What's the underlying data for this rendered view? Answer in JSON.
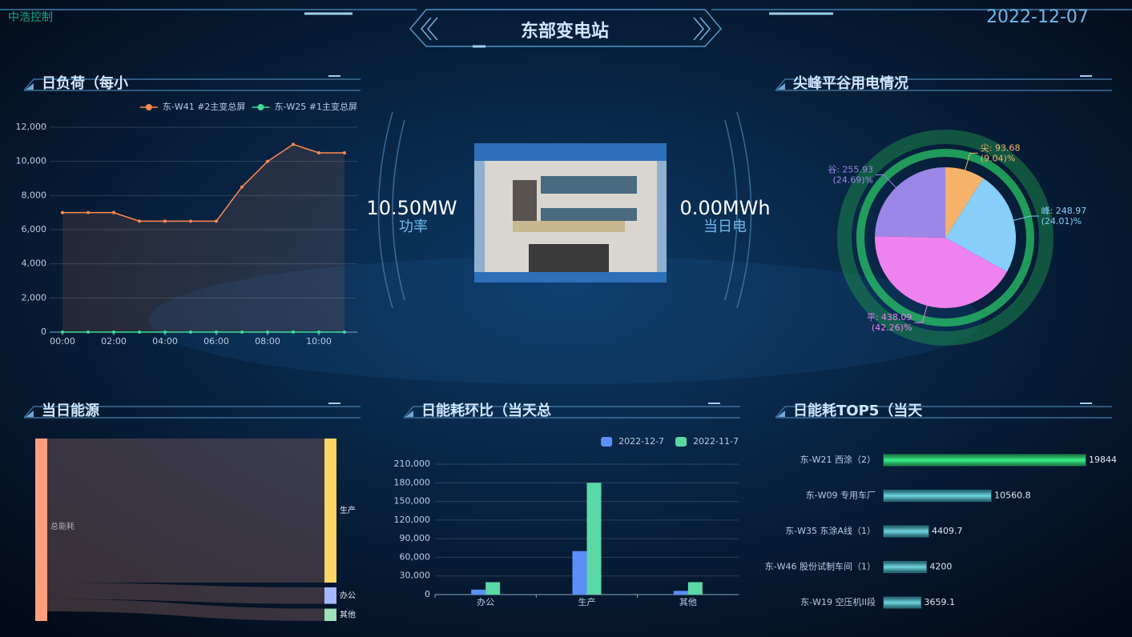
{
  "header": {
    "logo": "中浩控制",
    "title": "东部变电站",
    "date": "2022-12-07"
  },
  "center": {
    "power": "10.50MW",
    "power_label": "功率",
    "energy": "0.00MWh",
    "energy_label": "当日电"
  },
  "chart_data": [
    {
      "type": "line",
      "title": "日负荷（每小",
      "categories": [
        "00:00",
        null,
        "02:00",
        null,
        "04:00",
        null,
        "06:00",
        null,
        "08:00",
        null,
        "10:00",
        null
      ],
      "series": [
        {
          "name": "东-W41 #2主变总屏",
          "color": "#ff8a50",
          "values": [
            7000,
            7000,
            7000,
            6500,
            6500,
            6500,
            6500,
            8500,
            10000,
            11000,
            10500,
            10500
          ]
        },
        {
          "name": "东-W25 #1主变总屏",
          "color": "#3ddc97",
          "values": [
            0,
            0,
            0,
            0,
            0,
            0,
            0,
            0,
            0,
            0,
            0,
            0
          ]
        }
      ],
      "ylim": [
        0,
        12000
      ],
      "yticks": [
        0,
        {
          "value": 2000,
          "label": "2,000"
        },
        {
          "value": 4000,
          "label": "4,000"
        },
        {
          "value": 6000,
          "label": "6,000"
        },
        {
          "value": 8000,
          "label": "8,000"
        },
        {
          "value": 10000,
          "label": "10,000"
        },
        {
          "value": 12000,
          "label": "12,000"
        }
      ],
      "grid": true
    },
    {
      "type": "pie",
      "title": "尖峰平谷用电情况",
      "categories": [
        "尖",
        "峰",
        "平",
        "谷"
      ],
      "values": [
        93.68,
        248.97,
        438.09,
        255.93
      ],
      "value_labels": [
        "尖: 93.68",
        "峰: 248.97",
        "平: 438.09",
        "谷: 255.93"
      ],
      "percent_labels": [
        "(9.04)%",
        "(24.01)%",
        "(42.26)%",
        "(24.69)%"
      ],
      "colors": [
        "#f6b26b",
        "#87cefa",
        "#ee82ee",
        "#9b87e8"
      ]
    },
    {
      "type": "sankey",
      "title": "当日能源",
      "nodes": [
        {
          "name": "总能耗",
          "color": "#ff9f7f"
        },
        {
          "name": "生产",
          "color": "#ffd666"
        },
        {
          "name": "办公",
          "color": "#a5b8ff"
        },
        {
          "name": "其他",
          "color": "#9be3b8"
        }
      ],
      "links": [
        {
          "source": "总能耗",
          "target": "生产",
          "value": 70000
        },
        {
          "source": "总能耗",
          "target": "办公",
          "value": 8000
        },
        {
          "source": "总能耗",
          "target": "其他",
          "value": 6000
        }
      ]
    },
    {
      "type": "bar",
      "title": "日能耗环比（当天总",
      "categories": [
        "办公",
        "生产",
        "其他"
      ],
      "series": [
        {
          "name": "2022-12-7",
          "color": "#5b8ff9",
          "values": [
            8000,
            70000,
            6000
          ]
        },
        {
          "name": "2022-11-7",
          "color": "#5ad8a6",
          "values": [
            20000,
            180000,
            20000
          ]
        }
      ],
      "ylim": [
        0,
        210000
      ],
      "yticks": [
        0,
        {
          "value": 30000,
          "label": "30,000"
        },
        {
          "value": 60000,
          "label": "60,000"
        },
        {
          "value": 90000,
          "label": "90,000"
        },
        {
          "value": 120000,
          "label": "120,000"
        },
        {
          "value": 150000,
          "label": "150,000"
        },
        {
          "value": 180000,
          "label": "180,000"
        },
        {
          "value": 210000,
          "label": "210,000"
        }
      ],
      "grid": true
    },
    {
      "type": "hbar",
      "title": "日能耗TOP5（当天",
      "categories": [
        "东-W21 西涂（2）",
        "东-W09 专用车厂",
        "东-W35 东涂A线（1）",
        "东-W46 股份试制车间（1）",
        "东-W19 空压机II段"
      ],
      "values": [
        19844,
        10560.8,
        4409.7,
        4200,
        3659.1
      ],
      "colors": [
        "#2ecc71",
        "#3aa8b0",
        "#3aa8b0",
        "#3aa8b0",
        "#3aa8b0"
      ]
    }
  ]
}
